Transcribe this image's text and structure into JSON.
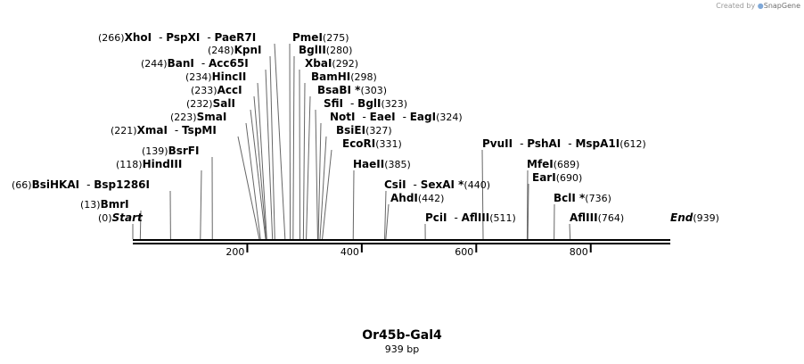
{
  "credit": {
    "prefix": "Created by",
    "brand": "SnapGene"
  },
  "title": "Or45b-Gal4",
  "length_label": "939 bp",
  "sequence_length": 939,
  "ticks": [
    {
      "value": 200,
      "label": "200"
    },
    {
      "value": 400,
      "label": "400"
    },
    {
      "value": 600,
      "label": "600"
    },
    {
      "value": 800,
      "label": "800"
    }
  ],
  "features": [
    {
      "pos": 0,
      "pos_label": "(0)",
      "names": [
        "Start"
      ],
      "italic": true,
      "side": "left"
    },
    {
      "pos": 13,
      "pos_label": "(13)",
      "names": [
        "BmrI"
      ],
      "side": "left"
    },
    {
      "pos": 66,
      "pos_label": "(66)",
      "names": [
        "BsiHKAI",
        "Bsp1286I"
      ],
      "side": "left"
    },
    {
      "pos": 118,
      "pos_label": "(118)",
      "names": [
        "HindIII"
      ],
      "side": "left"
    },
    {
      "pos": 139,
      "pos_label": "(139)",
      "names": [
        "BsrFI"
      ],
      "side": "left"
    },
    {
      "pos": 221,
      "pos_label": "(221)",
      "names": [
        "XmaI",
        "TspMI"
      ],
      "side": "left"
    },
    {
      "pos": 223,
      "pos_label": "(223)",
      "names": [
        "SmaI"
      ],
      "side": "left"
    },
    {
      "pos": 232,
      "pos_label": "(232)",
      "names": [
        "SalI"
      ],
      "side": "left"
    },
    {
      "pos": 233,
      "pos_label": "(233)",
      "names": [
        "AccI"
      ],
      "side": "left"
    },
    {
      "pos": 234,
      "pos_label": "(234)",
      "names": [
        "HincII"
      ],
      "side": "left"
    },
    {
      "pos": 244,
      "pos_label": "(244)",
      "names": [
        "BanI",
        "Acc65I"
      ],
      "side": "left"
    },
    {
      "pos": 248,
      "pos_label": "(248)",
      "names": [
        "KpnI"
      ],
      "side": "left"
    },
    {
      "pos": 266,
      "pos_label": "(266)",
      "names": [
        "XhoI",
        "PspXI",
        "PaeR7I"
      ],
      "side": "left"
    },
    {
      "pos": 275,
      "pos_label": "(275)",
      "names": [
        "PmeI"
      ],
      "side": "right"
    },
    {
      "pos": 280,
      "pos_label": "(280)",
      "names": [
        "BglII"
      ],
      "side": "right"
    },
    {
      "pos": 292,
      "pos_label": "(292)",
      "names": [
        "XbaI"
      ],
      "side": "right"
    },
    {
      "pos": 298,
      "pos_label": "(298)",
      "names": [
        "BamHI"
      ],
      "side": "right"
    },
    {
      "pos": 303,
      "pos_label": "(303)",
      "names": [
        "BsaBI *"
      ],
      "side": "right"
    },
    {
      "pos": 323,
      "pos_label": "(323)",
      "names": [
        "SfiI",
        "BglI"
      ],
      "side": "right"
    },
    {
      "pos": 324,
      "pos_label": "(324)",
      "names": [
        "NotI",
        "EaeI",
        "EagI"
      ],
      "side": "right"
    },
    {
      "pos": 327,
      "pos_label": "(327)",
      "names": [
        "BsiEI"
      ],
      "side": "right"
    },
    {
      "pos": 331,
      "pos_label": "(331)",
      "names": [
        "EcoRI"
      ],
      "side": "right"
    },
    {
      "pos": 385,
      "pos_label": "(385)",
      "names": [
        "HaeII"
      ],
      "side": "right"
    },
    {
      "pos": 440,
      "pos_label": "(440)",
      "names": [
        "CsiI",
        "SexAI *"
      ],
      "side": "right"
    },
    {
      "pos": 442,
      "pos_label": "(442)",
      "names": [
        "AhdI"
      ],
      "side": "right"
    },
    {
      "pos": 511,
      "pos_label": "(511)",
      "names": [
        "PciI",
        "AflIII"
      ],
      "side": "right"
    },
    {
      "pos": 612,
      "pos_label": "(612)",
      "names": [
        "PvuII",
        "PshAI",
        "MspA1I"
      ],
      "side": "right"
    },
    {
      "pos": 689,
      "pos_label": "(689)",
      "names": [
        "MfeI"
      ],
      "side": "right"
    },
    {
      "pos": 690,
      "pos_label": "(690)",
      "names": [
        "EarI"
      ],
      "side": "right"
    },
    {
      "pos": 736,
      "pos_label": "(736)",
      "names": [
        "BclI *"
      ],
      "side": "right"
    },
    {
      "pos": 764,
      "pos_label": "(764)",
      "names": [
        "AflIII"
      ],
      "side": "right"
    },
    {
      "pos": 939,
      "pos_label": "(939)",
      "names": [
        "End"
      ],
      "italic": true,
      "side": "right"
    }
  ]
}
